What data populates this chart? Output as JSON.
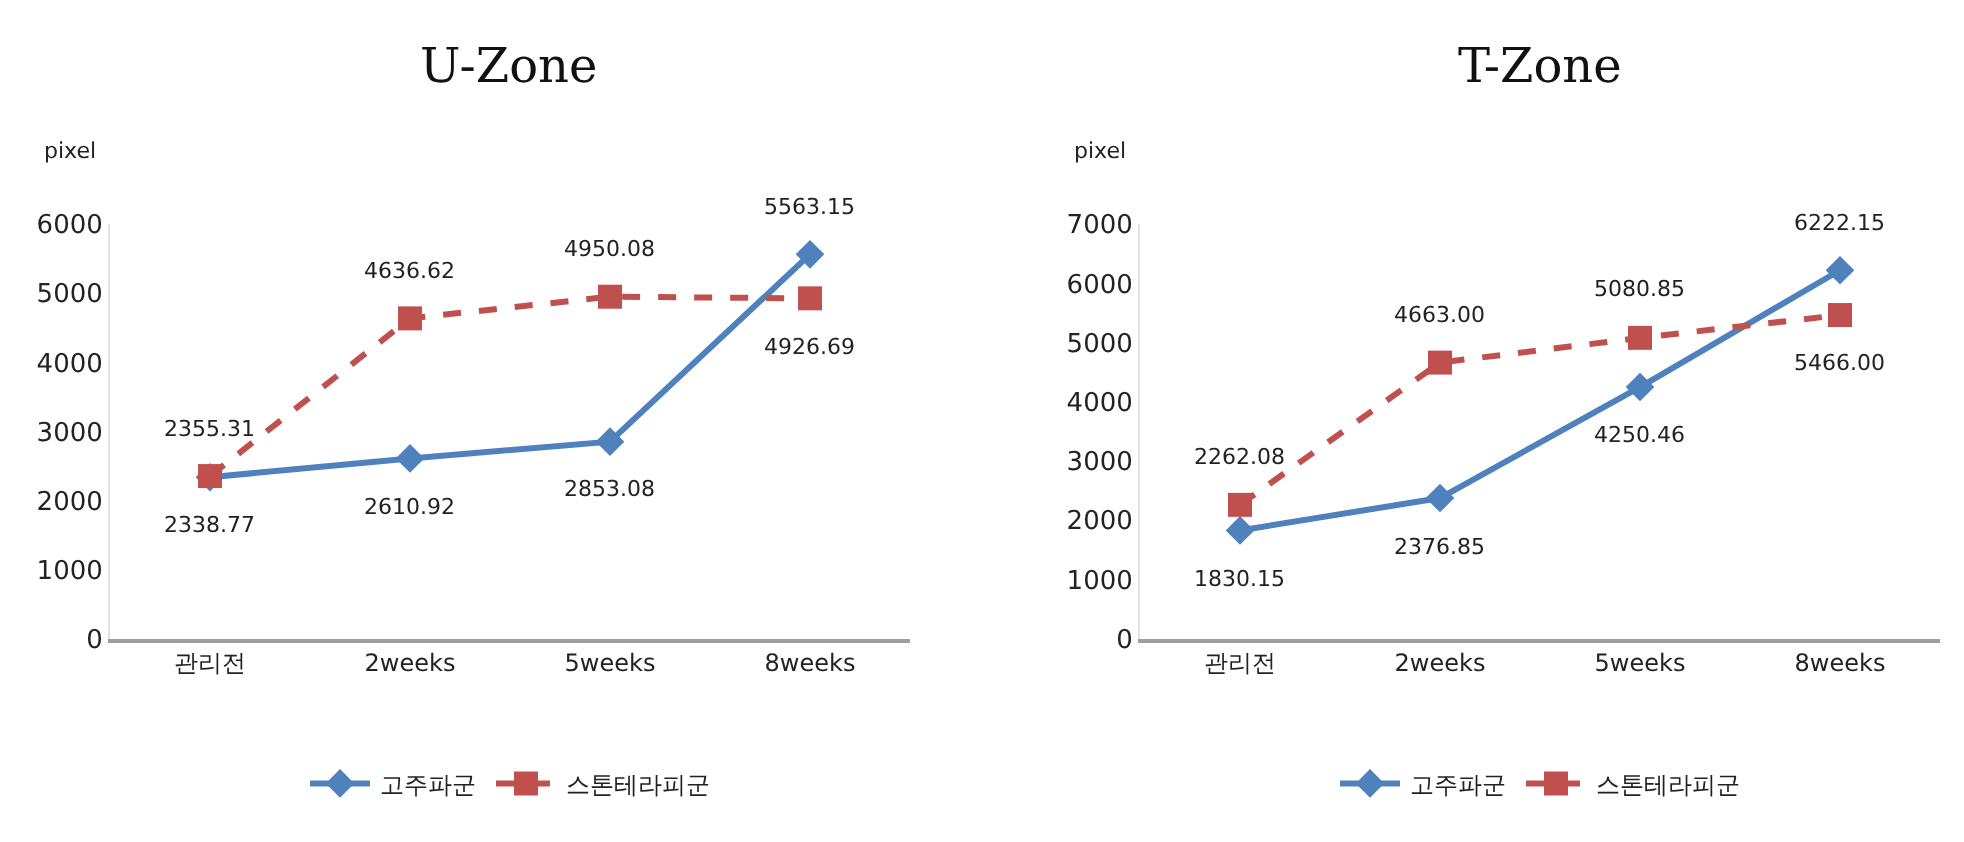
{
  "chart_data": [
    {
      "type": "line",
      "title": "U-Zone",
      "ylabel": "pixel",
      "categories": [
        "관리전",
        "2weeks",
        "5weeks",
        "8weeks"
      ],
      "ylim": [
        0,
        6000
      ],
      "yticks": [
        0,
        1000,
        2000,
        3000,
        4000,
        5000,
        6000
      ],
      "grid": false,
      "legend": "bottom",
      "series": [
        {
          "name": "고주파군",
          "color": "#4f81bd",
          "marker": "diamond",
          "line_style": "solid",
          "values": [
            2338.77,
            2610.92,
            2853.08,
            5563.15
          ],
          "value_labels": [
            "2338.77",
            "2610.92",
            "2853.08",
            "5563.15"
          ]
        },
        {
          "name": "스톤테라피군",
          "color": "#c0504d",
          "marker": "square",
          "line_style": "dashed",
          "values": [
            2355.31,
            4636.62,
            4950.08,
            4926.69
          ],
          "value_labels": [
            "2355.31",
            "4636.62",
            "4950.08",
            "4926.69"
          ]
        }
      ]
    },
    {
      "type": "line",
      "title": "T-Zone",
      "ylabel": "pixel",
      "categories": [
        "관리전",
        "2weeks",
        "5weeks",
        "8weeks"
      ],
      "ylim": [
        0,
        7000
      ],
      "yticks": [
        0,
        1000,
        2000,
        3000,
        4000,
        5000,
        6000,
        7000
      ],
      "grid": false,
      "legend": "bottom",
      "series": [
        {
          "name": "고주파군",
          "color": "#4f81bd",
          "marker": "diamond",
          "line_style": "solid",
          "values": [
            1830.15,
            2376.85,
            4250.46,
            6222.15
          ],
          "value_labels": [
            "1830.15",
            "2376.85",
            "4250.46",
            "6222.15"
          ]
        },
        {
          "name": "스톤테라피군",
          "color": "#c0504d",
          "marker": "square",
          "line_style": "dashed",
          "values": [
            2262.08,
            4663,
            5080.85,
            5466
          ],
          "value_labels": [
            "2262.08",
            "4663.00",
            "5080.85",
            "5466.00"
          ]
        }
      ]
    }
  ]
}
